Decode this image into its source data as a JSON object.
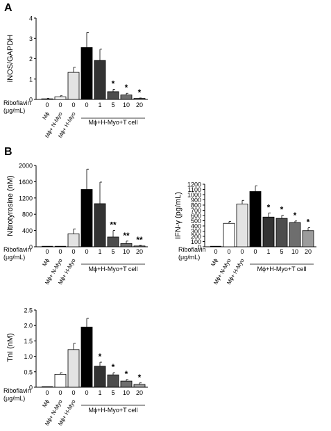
{
  "panel_labels": [
    "A",
    "B"
  ],
  "dose_row_title": "Riboflavin",
  "dose_row_unit": "(μg/mL)",
  "group_caption": "Mϕ+H-Myo+T cell",
  "categories": [
    "Mϕ",
    "Mϕ+ N-Myo",
    "Mϕ+ H-Myo",
    "0",
    "1",
    "5",
    "10",
    "20"
  ],
  "dose_values": [
    "0",
    "0",
    "0",
    "0",
    "1",
    "5",
    "10",
    "20"
  ],
  "colors": {
    "light": "#e3e3e3",
    "black": "#000000",
    "dark1": "#333333",
    "dark2": "#4d4d4d",
    "mid": "#6e6e6e",
    "light2": "#9c9c9c"
  },
  "chart_data": [
    {
      "type": "bar",
      "ylabel": "iNOS/GAPDH",
      "ylim": [
        0,
        4
      ],
      "yticks": [
        0,
        1,
        2,
        3,
        4
      ],
      "values": [
        0.03,
        0.13,
        1.33,
        2.55,
        1.92,
        0.38,
        0.22,
        0.05
      ],
      "errors": [
        0.02,
        0.05,
        0.25,
        0.75,
        0.55,
        0.12,
        0.08,
        0.02
      ],
      "significance": [
        "",
        "",
        "",
        "",
        "",
        "*",
        "*",
        "*"
      ]
    },
    {
      "type": "bar",
      "ylabel": "Nitrotyrosine (nM)",
      "ylim": [
        0,
        2000
      ],
      "yticks": [
        0,
        400,
        800,
        1200,
        1600,
        2000
      ],
      "values": [
        0,
        0,
        320,
        1410,
        1060,
        240,
        80,
        20
      ],
      "errors": [
        0,
        0,
        120,
        500,
        530,
        160,
        60,
        15
      ],
      "significance": [
        "",
        "",
        "",
        "",
        "",
        "**",
        "**",
        "**"
      ]
    },
    {
      "type": "bar",
      "ylabel": "IFN-γ (pg/mL)",
      "ylim": [
        0,
        1200
      ],
      "yticks": [
        0,
        100,
        200,
        300,
        400,
        500,
        600,
        700,
        800,
        900,
        1000,
        1100,
        1200
      ],
      "values": [
        0,
        450,
        820,
        1060,
        570,
        545,
        465,
        310
      ],
      "errors": [
        0,
        35,
        70,
        110,
        80,
        60,
        30,
        55
      ],
      "significance": [
        "",
        "",
        "",
        "",
        "*",
        "*",
        "*",
        "*"
      ]
    },
    {
      "type": "bar",
      "ylabel": "TnI (nM)",
      "ylim": [
        0,
        2.5
      ],
      "yticks": [
        0,
        0.5,
        1.0,
        1.5,
        2.0,
        2.5
      ],
      "yticklabels": [
        "0",
        "0.5",
        "1.0",
        "1.5",
        "2.0",
        "2.5"
      ],
      "values": [
        0,
        0.42,
        1.22,
        1.95,
        0.68,
        0.4,
        0.2,
        0.09
      ],
      "errors": [
        0,
        0.05,
        0.2,
        0.28,
        0.13,
        0.07,
        0.05,
        0.05
      ],
      "significance": [
        "",
        "",
        "",
        "",
        "*",
        "*",
        "*",
        "*"
      ]
    }
  ]
}
